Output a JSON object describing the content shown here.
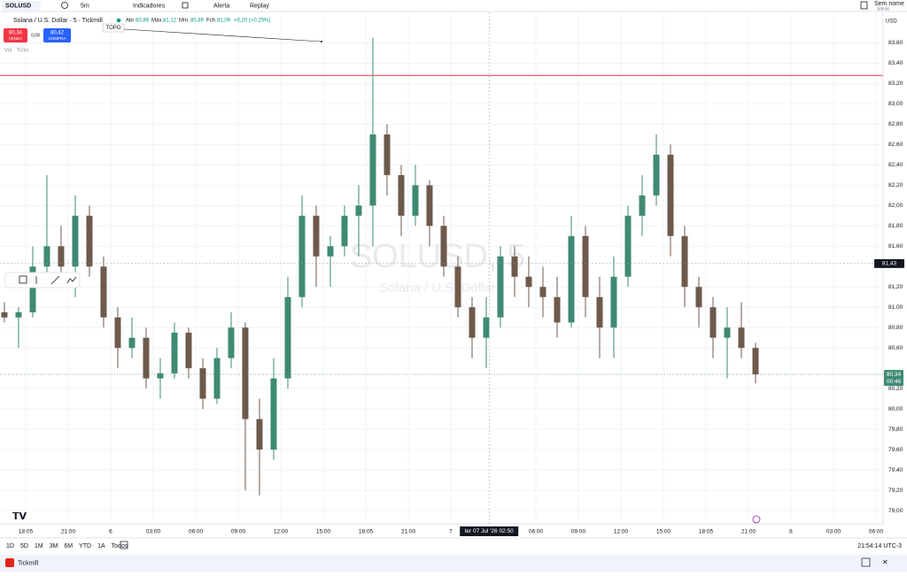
{
  "toolbar": {
    "symbol": "SOLUSD",
    "interval": "5m",
    "indicators": "Indicadores",
    "alert": "Alerta",
    "replay": "Replay",
    "layout_name": "Sem nome",
    "save": "Salvar"
  },
  "legend": {
    "title": "Solana / U.S. Dollar · 5 · Tickmill",
    "open_label": "Abr",
    "open": "80,89",
    "high_label": "Máx.",
    "high": "81,12",
    "low_label": "Mín.",
    "low": "80,89",
    "close_label": "Fch",
    "close": "81,09",
    "change": "+0,20 (+0,25%)",
    "volume": "Vol · Ticks"
  },
  "trade": {
    "sell": "80,34",
    "sell_label": "VENDA",
    "spread": "0,08",
    "buy": "80,42",
    "buy_label": "COMPRA"
  },
  "chart_data": {
    "type": "candlestick",
    "watermark": "SOLUSD, 5",
    "watermark_sub": "Solana / U.S. Dollar",
    "annotation": "TOPO",
    "currency": "USD",
    "x": [
      16.5,
      17.5,
      18.5,
      19.5,
      20.5,
      21.5,
      22.5,
      23.5,
      24.5,
      25.5,
      26.5,
      27.5,
      28.5,
      29.5,
      30.5,
      31.5,
      32.5,
      33.5,
      34.5,
      35.5,
      36.5,
      37.5,
      38.5,
      39.5,
      40.5,
      41.5,
      42.5,
      43.5,
      44.5,
      45.5,
      46.5,
      47.5,
      48.5,
      49.5,
      50.5,
      51.5,
      52.5,
      53.5,
      54.5,
      55.5,
      56.5,
      57.5,
      58.5,
      59.5,
      60.5,
      61.5,
      62.5,
      63.5,
      64.5,
      65.5,
      66.5,
      67.5,
      68.5,
      69.5
    ],
    "open": [
      80.95,
      80.9,
      80.95,
      81.4,
      81.6,
      81.4,
      81.9,
      81.4,
      80.9,
      80.6,
      80.7,
      80.3,
      80.35,
      80.75,
      80.4,
      80.1,
      80.5,
      80.8,
      79.9,
      79.6,
      80.3,
      81.1,
      81.9,
      81.5,
      81.6,
      81.9,
      82.0,
      82.7,
      82.3,
      81.9,
      82.2,
      81.8,
      81.4,
      81.0,
      80.7,
      80.9,
      81.5,
      81.3,
      81.2,
      81.1,
      80.85,
      81.7,
      81.1,
      80.8,
      81.3,
      81.9,
      82.1,
      82.5,
      81.7,
      81.2,
      81.0,
      80.7,
      80.8,
      80.6
    ],
    "high": [
      81.05,
      81.0,
      81.6,
      82.3,
      81.8,
      82.1,
      82.0,
      81.5,
      81.0,
      80.9,
      80.8,
      80.5,
      80.85,
      80.8,
      80.5,
      80.6,
      80.95,
      80.85,
      80.1,
      80.5,
      81.3,
      82.1,
      82.0,
      81.7,
      82.0,
      82.2,
      83.65,
      82.8,
      82.4,
      82.4,
      82.25,
      81.9,
      81.5,
      81.1,
      81.1,
      81.6,
      81.6,
      81.5,
      81.4,
      81.3,
      81.9,
      81.8,
      81.3,
      81.5,
      82.0,
      82.3,
      82.7,
      82.6,
      81.8,
      81.3,
      81.1,
      81.0,
      81.05,
      80.65
    ],
    "low": [
      80.85,
      80.6,
      80.9,
      81.3,
      81.3,
      81.1,
      81.3,
      80.8,
      80.4,
      80.5,
      80.2,
      80.1,
      80.3,
      80.3,
      80.0,
      80.05,
      80.4,
      79.2,
      79.15,
      79.5,
      80.2,
      81.0,
      81.2,
      81.2,
      81.5,
      81.5,
      81.6,
      82.1,
      81.7,
      81.8,
      81.6,
      81.3,
      80.9,
      80.5,
      80.4,
      80.8,
      81.1,
      81.0,
      80.9,
      80.7,
      80.8,
      80.9,
      80.5,
      80.5,
      81.2,
      81.7,
      82.0,
      81.5,
      81.0,
      80.8,
      80.5,
      80.3,
      80.5,
      80.25
    ],
    "close": [
      80.9,
      80.95,
      81.4,
      81.6,
      81.4,
      81.9,
      81.4,
      80.9,
      80.6,
      80.7,
      80.3,
      80.35,
      80.75,
      80.4,
      80.1,
      80.5,
      80.8,
      79.9,
      79.6,
      80.3,
      81.1,
      81.9,
      81.5,
      81.6,
      81.9,
      82.0,
      82.7,
      82.3,
      81.9,
      82.2,
      81.8,
      81.4,
      81.0,
      80.7,
      80.9,
      81.5,
      81.3,
      81.2,
      81.1,
      80.85,
      81.7,
      81.1,
      80.8,
      81.3,
      81.9,
      82.1,
      82.5,
      81.7,
      81.2,
      81.0,
      80.7,
      80.8,
      80.6,
      80.34
    ],
    "up_color": "#3f8a74",
    "down_color": "#6e5a4c",
    "xlim": [
      16.19,
      78.5
    ],
    "ylim": [
      78.87,
      83.9
    ],
    "xticks": [
      {
        "value": 18,
        "label": "18:05"
      },
      {
        "value": 21,
        "label": "21:00"
      },
      {
        "value": 24,
        "label": "6"
      },
      {
        "value": 27,
        "label": "03:00"
      },
      {
        "value": 30,
        "label": "06:00"
      },
      {
        "value": 33,
        "label": "09:00"
      },
      {
        "value": 36,
        "label": "12:00"
      },
      {
        "value": 39,
        "label": "15:00"
      },
      {
        "value": 42,
        "label": "18:05"
      },
      {
        "value": 45,
        "label": "21:00"
      },
      {
        "value": 48,
        "label": "7"
      },
      {
        "value": 54,
        "label": "06:00"
      },
      {
        "value": 57,
        "label": "09:00"
      },
      {
        "value": 60,
        "label": "12:00"
      },
      {
        "value": 63,
        "label": "15:00"
      },
      {
        "value": 66,
        "label": "18:05"
      },
      {
        "value": 69,
        "label": "21:00"
      },
      {
        "value": 72,
        "label": "8"
      },
      {
        "value": 75,
        "label": "03:00"
      },
      {
        "value": 78,
        "label": "06:00"
      }
    ],
    "yticks": [
      {
        "value": 83.6,
        "label": "83,60"
      },
      {
        "value": 83.4,
        "label": "83,40"
      },
      {
        "value": 83.2,
        "label": "83,20"
      },
      {
        "value": 83.0,
        "label": "83,00"
      },
      {
        "value": 82.8,
        "label": "82,80"
      },
      {
        "value": 82.6,
        "label": "82,60"
      },
      {
        "value": 82.4,
        "label": "82,40"
      },
      {
        "value": 82.2,
        "label": "82,20"
      },
      {
        "value": 82.0,
        "label": "82,00"
      },
      {
        "value": 81.8,
        "label": "81,80"
      },
      {
        "value": 81.6,
        "label": "81,60"
      },
      {
        "value": 81.2,
        "label": "81,20"
      },
      {
        "value": 81.0,
        "label": "81,00"
      },
      {
        "value": 80.8,
        "label": "80,80"
      },
      {
        "value": 80.6,
        "label": "80,60"
      },
      {
        "value": 80.2,
        "label": "80,20"
      },
      {
        "value": 80.0,
        "label": "80,00"
      },
      {
        "value": 79.8,
        "label": "79,80"
      },
      {
        "value": 79.6,
        "label": "79,60"
      },
      {
        "value": 79.4,
        "label": "79,40"
      },
      {
        "value": 79.2,
        "label": "79,20"
      },
      {
        "value": 79.0,
        "label": "79,00"
      }
    ],
    "grid": true,
    "crosshair": {
      "x": {
        "value": 50.7,
        "label": "ter 07 Jul '26  02:50"
      },
      "y": {
        "value": 81.43,
        "label": "81,43"
      }
    },
    "last_price": {
      "value": 80.34,
      "label": "80,34"
    },
    "countdown": "00:46",
    "alert_line": 83.28
  },
  "bottom": {
    "ranges": [
      "1D",
      "5D",
      "1M",
      "3M",
      "6M",
      "YTD",
      "1A",
      "Todos"
    ],
    "clock": "21:54:14 UTC-3"
  },
  "footer": {
    "broker": "Tickmill"
  }
}
